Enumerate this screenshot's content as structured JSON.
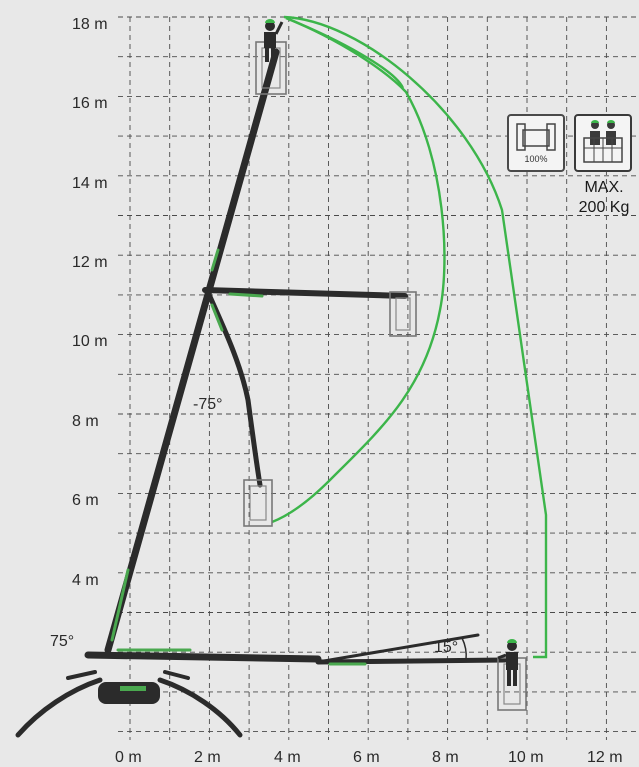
{
  "diagram": {
    "x_axis_labels": [
      "0 m",
      "2 m",
      "4 m",
      "6 m",
      "8 m",
      "10 m",
      "12 m"
    ],
    "y_axis_labels": [
      "18 m",
      "16 m",
      "14 m",
      "12 m",
      "10 m",
      "8 m",
      "6 m",
      "4 m"
    ],
    "angles": {
      "base_angle": "75°",
      "jib_down_angle": "-75°",
      "jib_up_angle": "15°"
    },
    "capacity": {
      "percent_label": "100%",
      "max_line1": "MAX.",
      "max_line2": "200 Kg"
    },
    "colors": {
      "envelope": "#3cb54a",
      "grid": "#4a4a4a",
      "background": "#e8e8e8",
      "machine": "#2b2b2b"
    },
    "icons": [
      "platform-capacity-icon",
      "two-operators-icon",
      "operator-icon"
    ]
  }
}
